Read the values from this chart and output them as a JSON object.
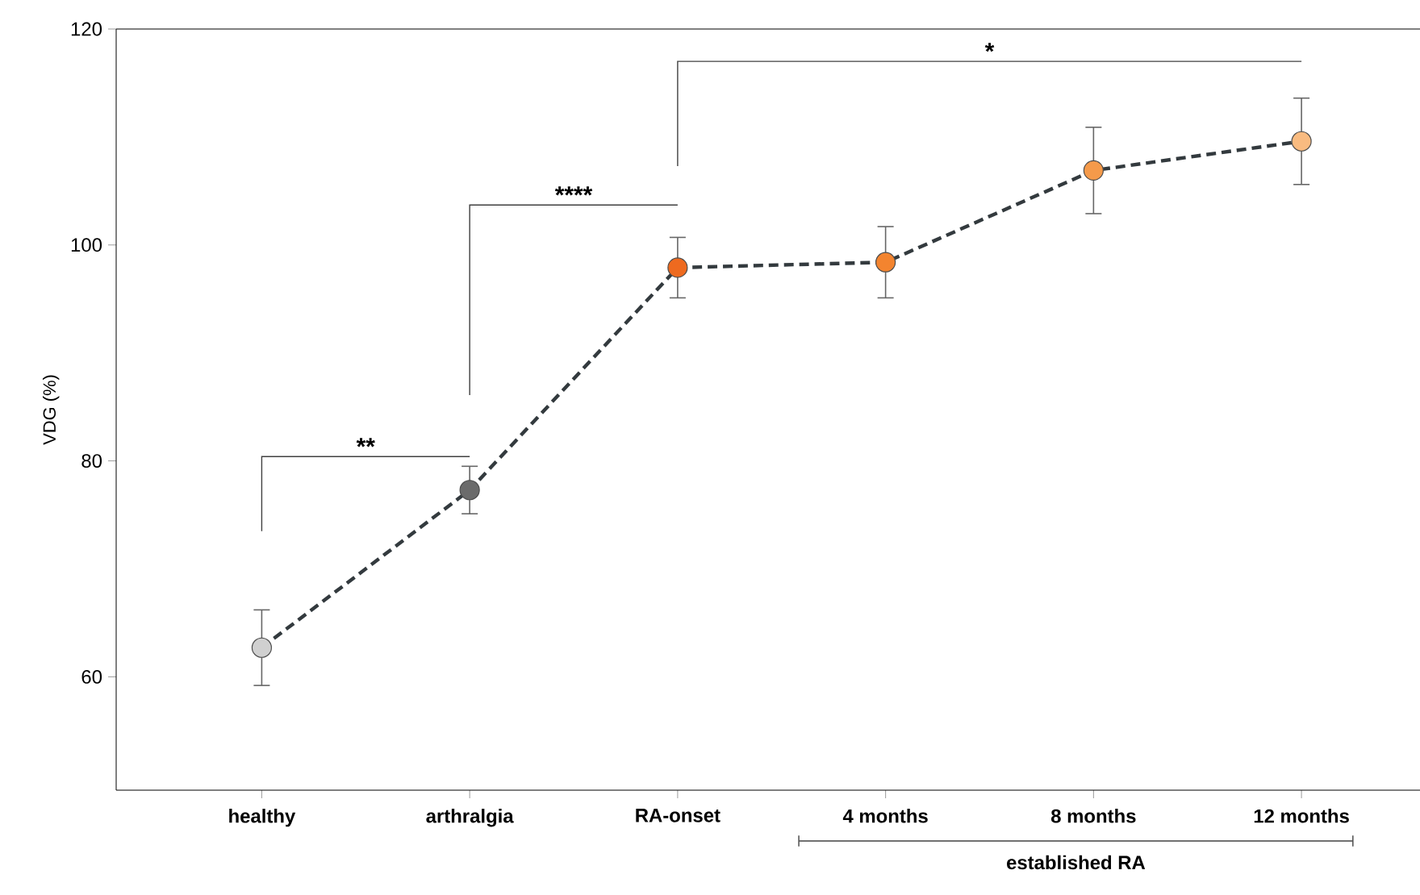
{
  "chart_data": {
    "type": "line",
    "ylabel": "VDG (%)",
    "categories": [
      "healthy",
      "arthralgia",
      "RA-onset",
      "4 months",
      "8 months",
      "12 months"
    ],
    "values": [
      62.7,
      77.3,
      97.9,
      98.4,
      106.9,
      109.6
    ],
    "errors": [
      3.5,
      2.2,
      2.8,
      3.3,
      4.0,
      4.0
    ],
    "colors": [
      "#d0d0d0",
      "#6b6b6b",
      "#ee6a1f",
      "#f3842f",
      "#f59a4a",
      "#f9bb80"
    ],
    "color": "#333a3e",
    "marker": "circle",
    "line_style": "dashed",
    "ylim": [
      49.5,
      120
    ],
    "yticks": [
      60,
      80,
      100,
      120
    ],
    "annotations": [
      "**",
      "****",
      "*",
      "established RA"
    ]
  }
}
